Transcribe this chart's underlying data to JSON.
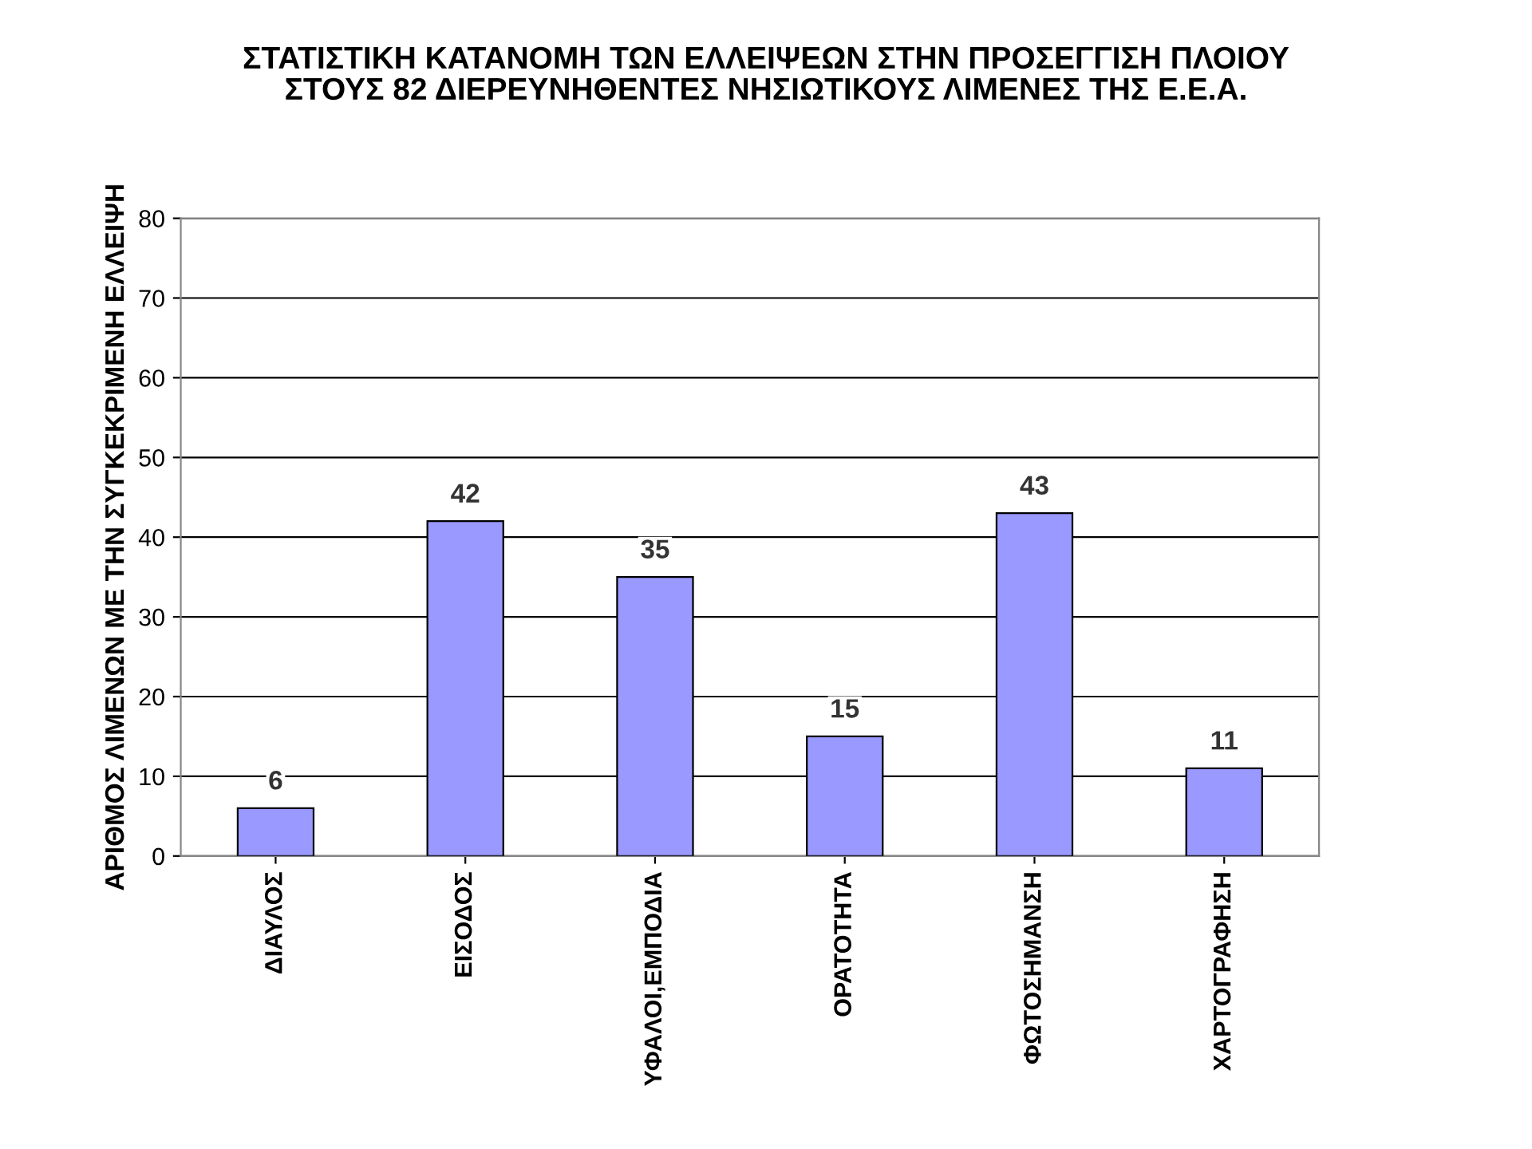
{
  "chart_data": {
    "type": "bar",
    "title": "ΣΤΑΤΙΣΤΙΚΗ ΚΑΤΑΝΟΜΗ ΤΩΝ ΕΛΛΕΙΨΕΩΝ ΣΤΗΝ ΠΡΟΣΕΓΓΙΣΗ ΠΛΟΙΟΥ\nΣΤΟΥΣ 82 ΔΙΕΡΕΥΝΗΘΕΝΤΕΣ ΝΗΣΙΩΤΙΚΟΥΣ ΛΙΜΕΝΕΣ ΤΗΣ Ε.Ε.Α.",
    "ylabel": "ΑΡΙΘΜΟΣ ΛΙΜΕΝΩΝ ΜΕ ΤΗΝ ΣΥΓΚΕΚΡΙΜΕΝΗ ΕΛΛΕΙΨΗ",
    "categories": [
      "ΔΙΑΥΛΟΣ",
      "ΕΙΣΟΔΟΣ",
      "ΥΦΑΛΟΙ,ΕΜΠΟΔΙΑ",
      "ΟΡΑΤΟΤΗΤΑ",
      "ΦΩΤΟΣΗΜΑΝΣΗ",
      "ΧΑΡΤΟΓΡΑΦΗΣΗ"
    ],
    "values": [
      6,
      42,
      35,
      15,
      43,
      11
    ],
    "color": "#9999ff",
    "ylim": [
      0,
      80
    ],
    "yticks": [
      0,
      10,
      20,
      30,
      40,
      50,
      60,
      70,
      80
    ],
    "grid": "y",
    "data_labels": true
  }
}
